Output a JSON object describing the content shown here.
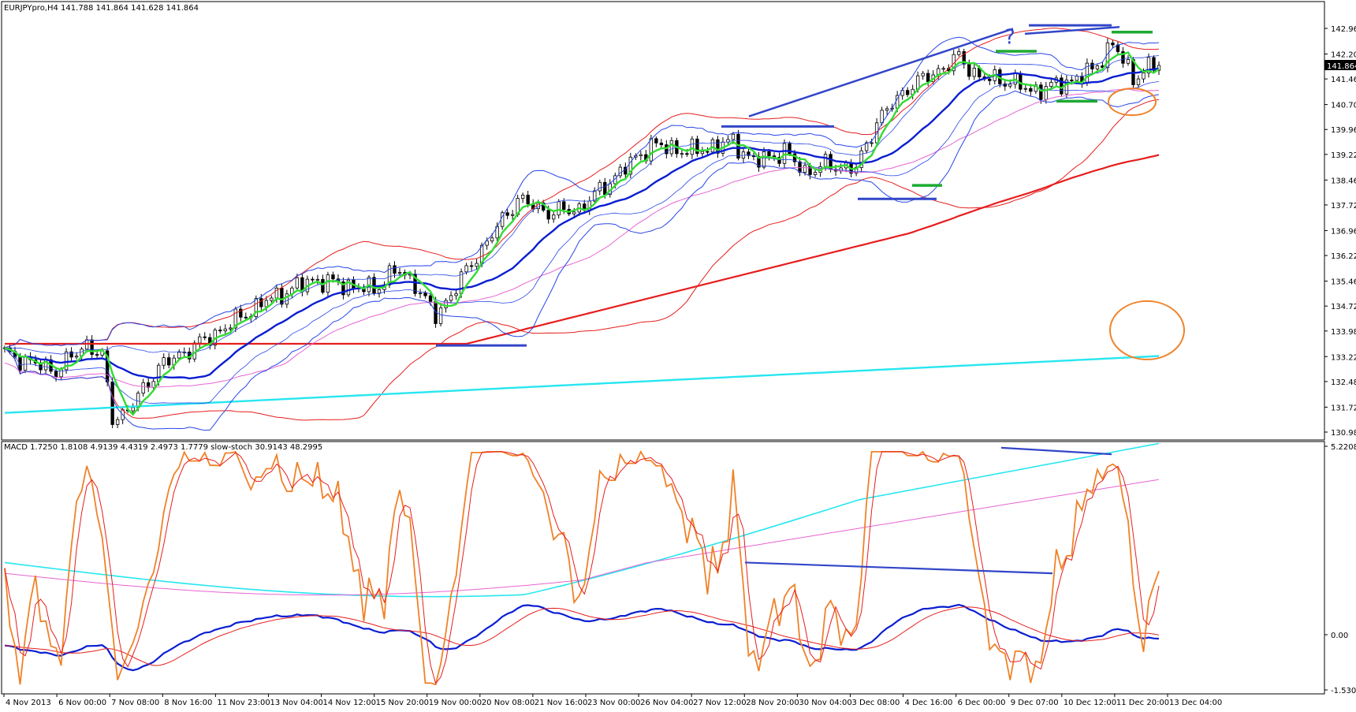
{
  "colors": {
    "background": "#ffffff",
    "frame": "#000000",
    "bull_candle": "#ffffff",
    "bear_candle": "#000000",
    "ma_fast": "#32dc32",
    "ma_blue": "#0a1ed2",
    "bollinger": "#2846e6",
    "envelope_red": "#e61e1e",
    "ma_red_thick": "#e61e1e",
    "ma_cyan": "#28e6f0",
    "ma_magenta": "#e664d2",
    "ma_purple": "#a064e6",
    "drawing_blue": "#3246c8",
    "drawing_green": "#1eaa32",
    "drawing_orange": "#f08228",
    "stoch": "#f08228",
    "macd_main": "#0a1ed2",
    "macd_signal": "#e61e1e"
  },
  "chart_data": [
    {
      "type": "candlestick",
      "title": "EURJPYpro,H4  141.788 141.864 141.628 141.864",
      "symbol": "EURJPYpro",
      "timeframe": "H4",
      "ohlc_header": {
        "open": 141.788,
        "high": 141.864,
        "low": 141.628,
        "close": 141.864
      },
      "current_price_label": "141.864",
      "ylim": [
        130.98,
        142.96
      ],
      "y_ticks": [
        "142.960",
        "142.200",
        "141.460",
        "140.700",
        "139.960",
        "139.220",
        "138.460",
        "137.720",
        "136.960",
        "136.220",
        "135.460",
        "134.720",
        "133.980",
        "133.220",
        "132.480",
        "131.720",
        "130.980"
      ],
      "y_tick_values": [
        142.96,
        142.2,
        141.46,
        140.7,
        139.96,
        139.22,
        138.46,
        137.72,
        136.96,
        136.22,
        135.46,
        134.72,
        133.98,
        133.22,
        132.48,
        131.72,
        130.98
      ],
      "x_ticks": [
        "4 Nov 2013",
        "6 Nov 00:00",
        "7 Nov 08:00",
        "8 Nov 16:00",
        "11 Nov 23:00",
        "13 Nov 04:00",
        "14 Nov 12:00",
        "15 Nov 20:00",
        "19 Nov 00:00",
        "20 Nov 08:00",
        "21 Nov 16:00",
        "23 Nov 00:00",
        "26 Nov 04:00",
        "27 Nov 12:00",
        "28 Nov 20:00",
        "30 Nov 04:00",
        "3 Dec 08:00",
        "4 Dec 16:00",
        "6 Dec 00:00",
        "9 Dec 07:00",
        "10 Dec 12:00",
        "11 Dec 20:00",
        "13 Dec 04:00"
      ],
      "close_waypoints": [
        [
          0,
          133.3
        ],
        [
          10,
          132.8
        ],
        [
          16,
          133.6
        ],
        [
          19,
          133.2
        ],
        [
          21,
          131.4
        ],
        [
          24,
          131.6
        ],
        [
          30,
          132.9
        ],
        [
          40,
          133.8
        ],
        [
          50,
          134.8
        ],
        [
          60,
          135.5
        ],
        [
          72,
          135.2
        ],
        [
          76,
          135.8
        ],
        [
          80,
          135.4
        ],
        [
          84,
          134.4
        ],
        [
          92,
          136.2
        ],
        [
          100,
          137.9
        ],
        [
          106,
          137.5
        ],
        [
          112,
          137.6
        ],
        [
          120,
          138.7
        ],
        [
          126,
          139.5
        ],
        [
          134,
          139.3
        ],
        [
          142,
          139.6
        ],
        [
          146,
          139.0
        ],
        [
          152,
          139.3
        ],
        [
          156,
          138.7
        ],
        [
          160,
          138.9
        ],
        [
          166,
          138.8
        ],
        [
          170,
          140.2
        ],
        [
          176,
          141.2
        ],
        [
          182,
          141.7
        ],
        [
          186,
          142.1
        ],
        [
          190,
          141.5
        ],
        [
          196,
          141.4
        ],
        [
          200,
          141.1
        ],
        [
          206,
          141.3
        ],
        [
          212,
          141.7
        ],
        [
          216,
          142.5
        ],
        [
          220,
          141.5
        ],
        [
          224,
          141.86
        ]
      ],
      "overlays": [
        "green fast MA",
        "blue MA",
        "Bollinger bands",
        "red envelopes",
        "thick red MA",
        "cyan MA",
        "magenta MA"
      ],
      "annotations": {
        "question_mark": "?"
      }
    },
    {
      "type": "line",
      "title": "MACD 1.7250 1.8108 4.9139 4.4319 2.4973 1.7779 slow-stoch 30.9143 48.2995",
      "ylim": [
        -1.5301,
        5.2208
      ],
      "y_ticks": [
        "5.2208",
        "0.00",
        "-1.5301"
      ],
      "y_tick_values": [
        5.2208,
        0,
        -1.5301
      ],
      "stoch_oscillating": true
    }
  ]
}
